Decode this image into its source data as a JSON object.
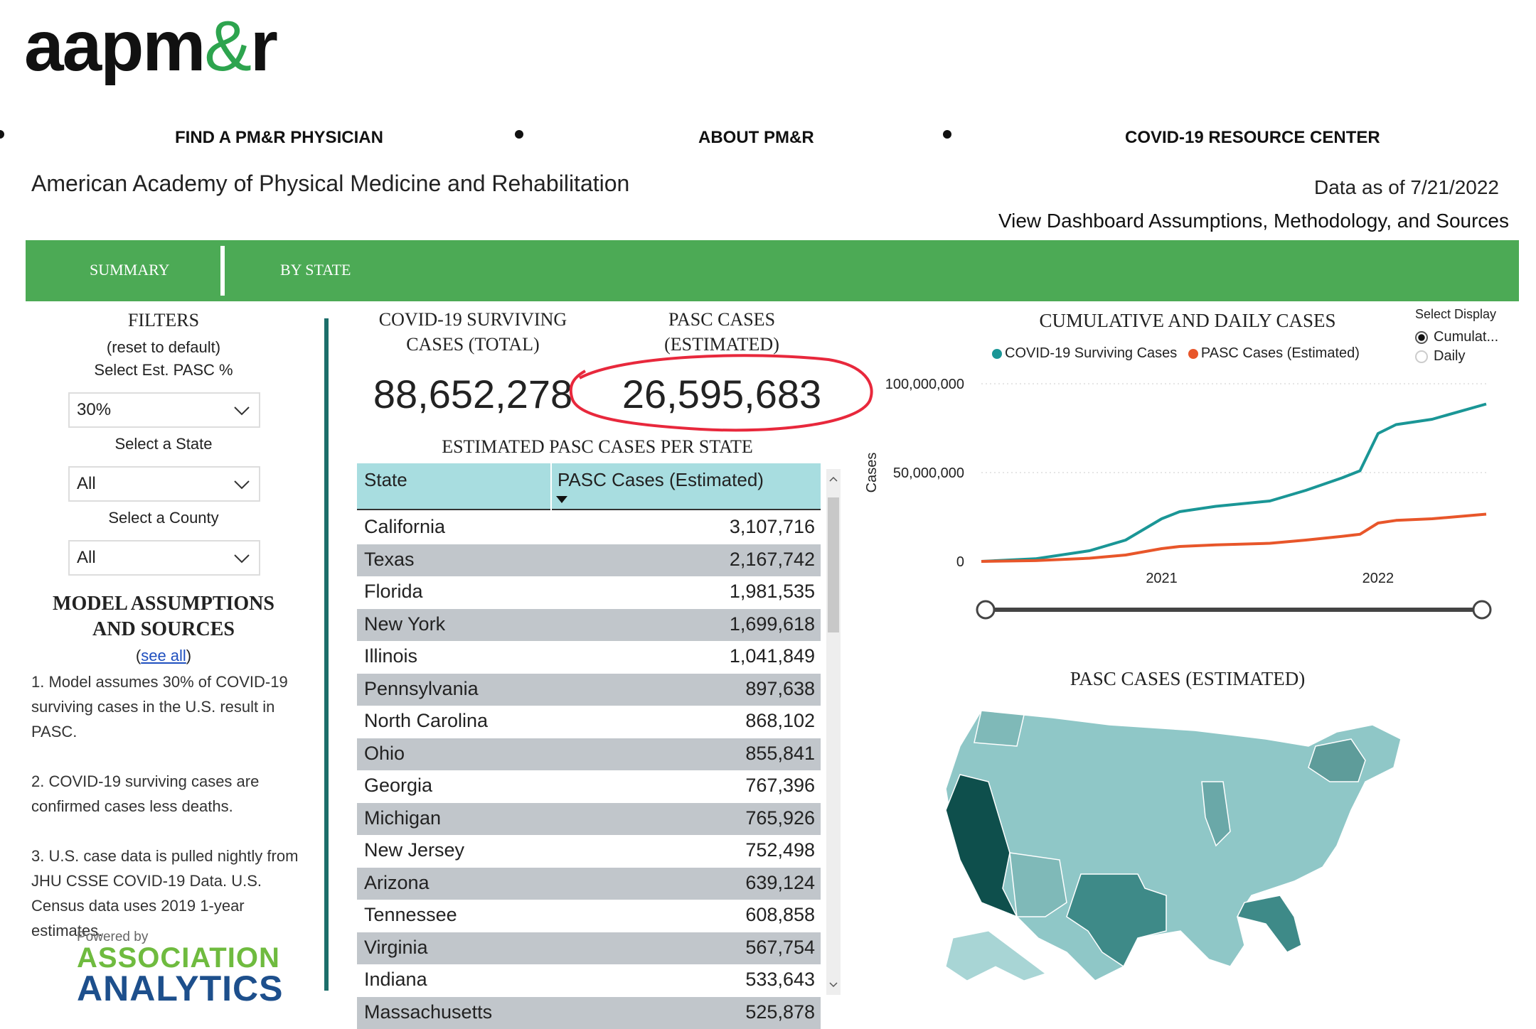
{
  "logo": {
    "left": "aapm",
    "amp": "&",
    "right": "r"
  },
  "nav": {
    "items": [
      "FIND A PM&R PHYSICIAN",
      "ABOUT PM&R",
      "COVID-19 RESOURCE CENTER"
    ]
  },
  "header": {
    "org_name": "American Academy of Physical Medicine and Rehabilitation",
    "data_as_of": "Data as of 7/21/2022",
    "view_dashboard_link": "View Dashboard Assumptions, Methodology, and Sources"
  },
  "tabs": [
    "SUMMARY",
    "BY STATE"
  ],
  "filters": {
    "title": "FILTERS",
    "reset": "(reset to default)",
    "pasc_label": "Select Est. PASC %",
    "pasc_value": "30%",
    "state_label": "Select a State",
    "state_value": "All",
    "county_label": "Select a County",
    "county_value": "All"
  },
  "model": {
    "title_line1": "MODEL ASSUMPTIONS",
    "title_line2": "AND SOURCES",
    "see_all_open": "(",
    "see_all": "see all",
    "see_all_close": ")",
    "items": [
      "1. Model assumes 30% of COVID-19 surviving cases in the U.S. result in PASC.",
      "2. COVID-19 surviving cases are confirmed cases less deaths.",
      "3. U.S. case data is pulled nightly from JHU CSSE COVID-19 Data. U.S. Census data uses 2019 1-year estimates."
    ]
  },
  "branding": {
    "powered_by": "Powered by",
    "line1": "ASSOCIATION",
    "line2": "ANALYTICS"
  },
  "kpis": {
    "surviving": {
      "label_line1": "COVID-19 SURVIVING",
      "label_line2": "CASES (TOTAL)",
      "value": "88,652,278"
    },
    "pasc": {
      "label_line1": "PASC CASES",
      "label_line2": "(ESTIMATED)",
      "value": "26,595,683"
    }
  },
  "table": {
    "title": "ESTIMATED PASC CASES PER STATE",
    "col_state": "State",
    "col_value": "PASC Cases (Estimated)",
    "rows": [
      {
        "state": "California",
        "value": "3,107,716"
      },
      {
        "state": "Texas",
        "value": "2,167,742"
      },
      {
        "state": "Florida",
        "value": "1,981,535"
      },
      {
        "state": "New York",
        "value": "1,699,618"
      },
      {
        "state": "Illinois",
        "value": "1,041,849"
      },
      {
        "state": "Pennsylvania",
        "value": "897,638"
      },
      {
        "state": "North Carolina",
        "value": "868,102"
      },
      {
        "state": "Ohio",
        "value": "855,841"
      },
      {
        "state": "Georgia",
        "value": "767,396"
      },
      {
        "state": "Michigan",
        "value": "765,926"
      },
      {
        "state": "New Jersey",
        "value": "752,498"
      },
      {
        "state": "Arizona",
        "value": "639,124"
      },
      {
        "state": "Tennessee",
        "value": "608,858"
      },
      {
        "state": "Virginia",
        "value": "567,754"
      },
      {
        "state": "Indiana",
        "value": "533,643"
      },
      {
        "state": "Massachusetts",
        "value": "525,878"
      }
    ]
  },
  "display_select": {
    "label": "Select Display",
    "options": [
      "Cumulat...",
      "Daily"
    ],
    "selected": "Cumulat..."
  },
  "chart_data": {
    "type": "line",
    "title": "CUMULATIVE AND DAILY CASES",
    "ylabel": "Cases",
    "ylim": [
      0,
      100000000
    ],
    "y_ticks": [
      0,
      50000000,
      100000000
    ],
    "y_tick_labels": [
      "0",
      "50,000,000",
      "100,000,000"
    ],
    "x_ticks": [
      "2021",
      "2022"
    ],
    "x_range": [
      "2020-03",
      "2022-07"
    ],
    "grid": true,
    "legend_position": "top",
    "series": [
      {
        "name": "COVID-19 Surviving Cases",
        "color": "#1a9696",
        "x": [
          "2020-03",
          "2020-06",
          "2020-09",
          "2020-11",
          "2021-01",
          "2021-02",
          "2021-04",
          "2021-07",
          "2021-09",
          "2021-11",
          "2021-12",
          "2022-01",
          "2022-02",
          "2022-04",
          "2022-07"
        ],
        "values": [
          0,
          1500000,
          6000000,
          12000000,
          24000000,
          28000000,
          31000000,
          34000000,
          40000000,
          47000000,
          51000000,
          72000000,
          77000000,
          80000000,
          88600000
        ]
      },
      {
        "name": "PASC Cases (Estimated)",
        "color": "#e8562a",
        "x": [
          "2020-03",
          "2020-06",
          "2020-09",
          "2020-11",
          "2021-01",
          "2021-02",
          "2021-04",
          "2021-07",
          "2021-09",
          "2021-11",
          "2021-12",
          "2022-01",
          "2022-02",
          "2022-04",
          "2022-07"
        ],
        "values": [
          0,
          450000,
          1800000,
          3600000,
          7200000,
          8400000,
          9300000,
          10200000,
          12000000,
          14100000,
          15300000,
          21600000,
          23100000,
          24000000,
          26600000
        ]
      }
    ]
  },
  "map": {
    "title": "PASC CASES (ESTIMATED)"
  },
  "colors": {
    "green": "#4caa55",
    "teal": "#1c6e6a",
    "annotation_red": "#e8283c"
  }
}
